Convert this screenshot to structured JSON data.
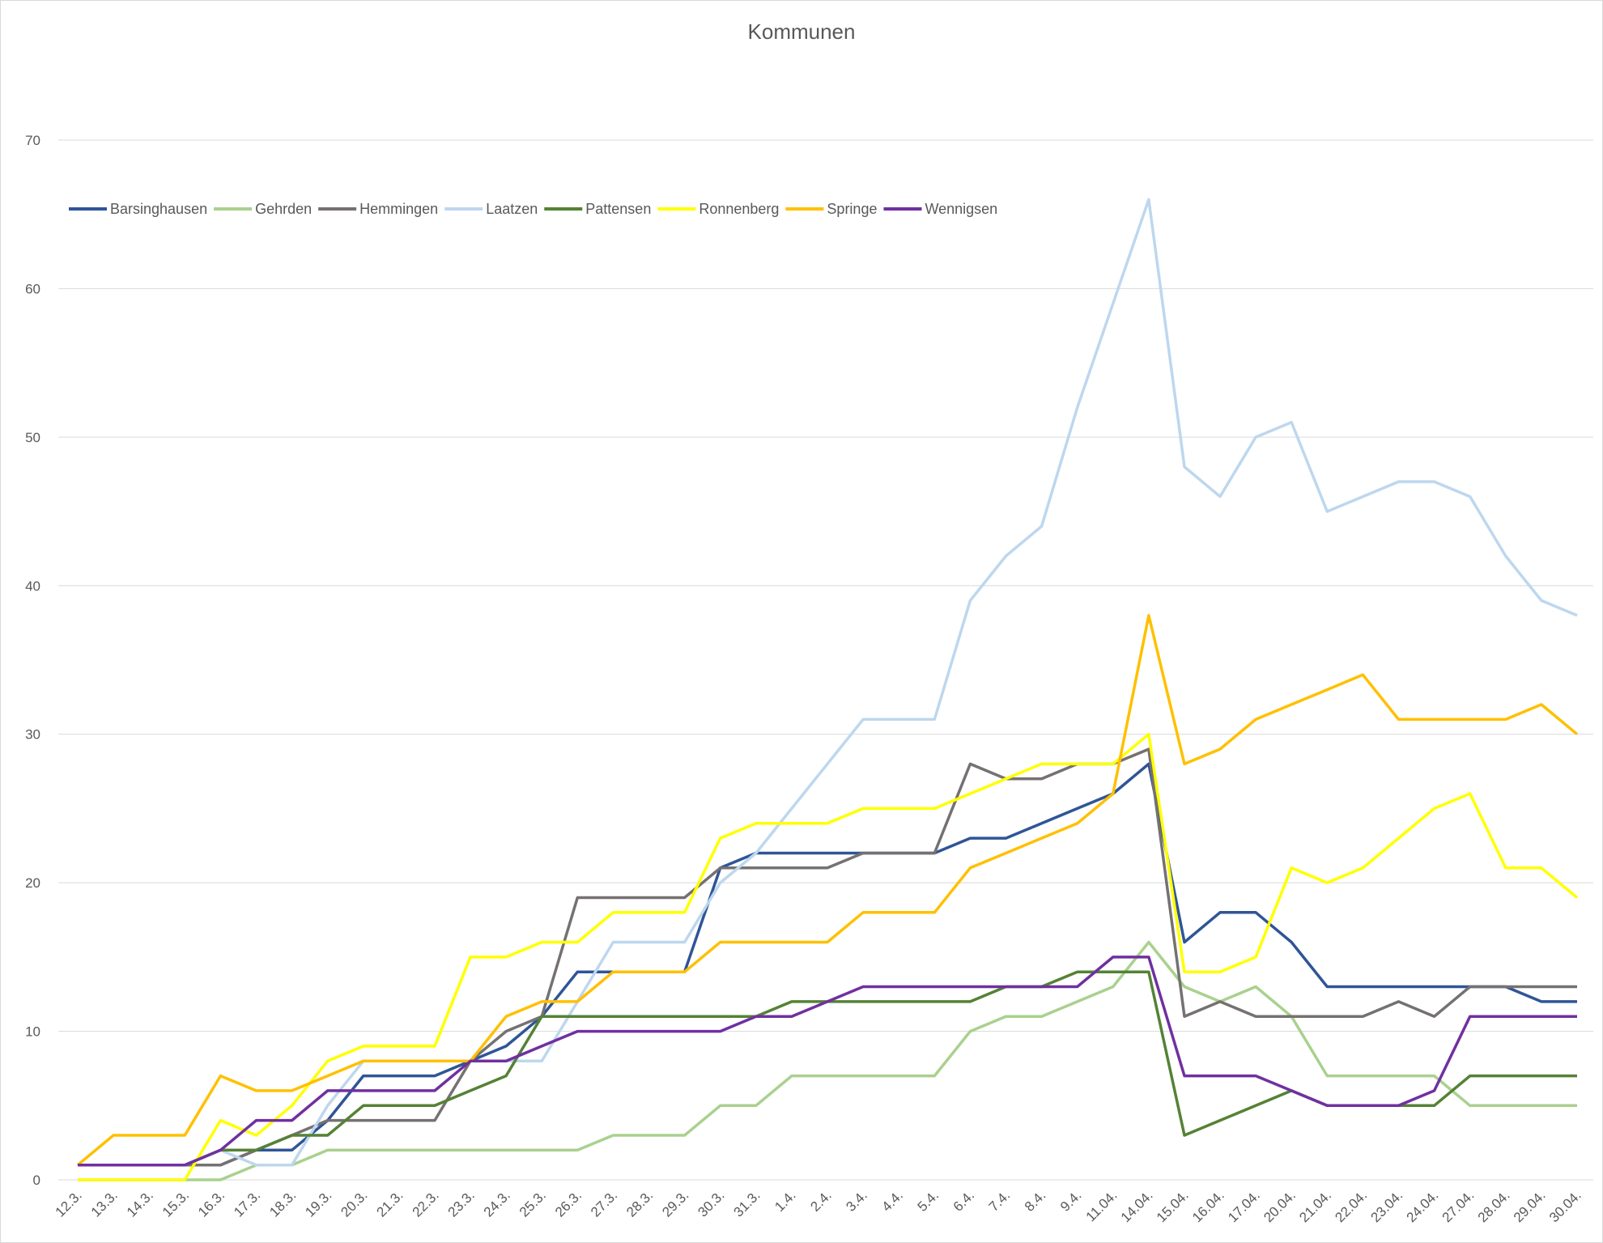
{
  "chart_data": {
    "type": "line",
    "title": "Kommunen",
    "xlabel": "",
    "ylabel": "",
    "ylim": [
      0,
      70
    ],
    "yticks": [
      0,
      10,
      20,
      30,
      40,
      50,
      60,
      70
    ],
    "grid": true,
    "legend_position": "top-left",
    "categories": [
      "12.3.",
      "13.3.",
      "14.3.",
      "15.3.",
      "16.3.",
      "17.3.",
      "18.3.",
      "19.3.",
      "20.3.",
      "21.3.",
      "22.3.",
      "23.3.",
      "24.3.",
      "25.3.",
      "26.3.",
      "27.3.",
      "28.3.",
      "29.3.",
      "30.3.",
      "31.3.",
      "1.4.",
      "2.4.",
      "3.4.",
      "4.4.",
      "5.4.",
      "6.4.",
      "7.4.",
      "8.4.",
      "9.4.",
      "11.04.",
      "14.04.",
      "15.04.",
      "16.04.",
      "17.04.",
      "20.04.",
      "21.04.",
      "22.04.",
      "23.04.",
      "24.04.",
      "27.04.",
      "28.04.",
      "29.04.",
      "30.04."
    ],
    "series": [
      {
        "name": "Barsinghausen",
        "color": "#2f5597",
        "values": [
          1,
          1,
          1,
          1,
          1,
          2,
          2,
          4,
          7,
          7,
          7,
          8,
          9,
          11,
          14,
          14,
          14,
          14,
          21,
          22,
          22,
          22,
          22,
          22,
          22,
          23,
          23,
          24,
          25,
          26,
          28,
          16,
          18,
          18,
          16,
          13,
          13,
          13,
          13,
          13,
          13,
          12,
          12
        ]
      },
      {
        "name": "Gehrden",
        "color": "#a9d18e",
        "values": [
          0,
          0,
          0,
          0,
          0,
          1,
          1,
          2,
          2,
          2,
          2,
          2,
          2,
          2,
          2,
          3,
          3,
          3,
          5,
          5,
          7,
          7,
          7,
          7,
          7,
          10,
          11,
          11,
          12,
          13,
          16,
          13,
          12,
          13,
          11,
          7,
          7,
          7,
          7,
          5,
          5,
          5,
          5
        ]
      },
      {
        "name": "Hemmingen",
        "color": "#767171",
        "values": [
          1,
          1,
          1,
          1,
          1,
          2,
          3,
          4,
          4,
          4,
          4,
          8,
          10,
          11,
          19,
          19,
          19,
          19,
          21,
          21,
          21,
          21,
          22,
          22,
          22,
          28,
          27,
          27,
          28,
          28,
          29,
          11,
          12,
          11,
          11,
          11,
          11,
          12,
          11,
          13,
          13,
          13,
          13
        ]
      },
      {
        "name": "Laatzen",
        "color": "#bdd7ee",
        "values": [
          1,
          1,
          1,
          1,
          2,
          1,
          1,
          5,
          8,
          8,
          8,
          8,
          8,
          8,
          12,
          16,
          16,
          16,
          20,
          22,
          25,
          28,
          31,
          31,
          31,
          39,
          42,
          44,
          52,
          59,
          66,
          48,
          46,
          50,
          51,
          45,
          46,
          47,
          47,
          46,
          42,
          39,
          38
        ]
      },
      {
        "name": "Pattensen",
        "color": "#548235",
        "values": [
          1,
          1,
          1,
          1,
          2,
          2,
          3,
          3,
          5,
          5,
          5,
          6,
          7,
          11,
          11,
          11,
          11,
          11,
          11,
          11,
          12,
          12,
          12,
          12,
          12,
          12,
          13,
          13,
          14,
          14,
          14,
          3,
          4,
          5,
          6,
          5,
          5,
          5,
          5,
          7,
          7,
          7,
          7
        ]
      },
      {
        "name": "Ronnenberg",
        "color": "#ffff00",
        "values": [
          0,
          0,
          0,
          0,
          4,
          3,
          5,
          8,
          9,
          9,
          9,
          15,
          15,
          16,
          16,
          18,
          18,
          18,
          23,
          24,
          24,
          24,
          25,
          25,
          25,
          26,
          27,
          28,
          28,
          28,
          30,
          14,
          14,
          15,
          21,
          20,
          21,
          23,
          25,
          26,
          21,
          21,
          19
        ]
      },
      {
        "name": "Springe",
        "color": "#ffc000",
        "values": [
          1,
          3,
          3,
          3,
          7,
          6,
          6,
          7,
          8,
          8,
          8,
          8,
          11,
          12,
          12,
          14,
          14,
          14,
          16,
          16,
          16,
          16,
          18,
          18,
          18,
          21,
          22,
          23,
          24,
          26,
          38,
          28,
          29,
          31,
          32,
          33,
          34,
          31,
          31,
          31,
          31,
          32,
          30
        ]
      },
      {
        "name": "Wennigsen",
        "color": "#7030a0",
        "values": [
          1,
          1,
          1,
          1,
          2,
          4,
          4,
          6,
          6,
          6,
          6,
          8,
          8,
          9,
          10,
          10,
          10,
          10,
          10,
          11,
          11,
          12,
          13,
          13,
          13,
          13,
          13,
          13,
          13,
          15,
          15,
          7,
          7,
          7,
          6,
          5,
          5,
          5,
          6,
          11,
          11,
          11,
          11
        ]
      }
    ]
  }
}
